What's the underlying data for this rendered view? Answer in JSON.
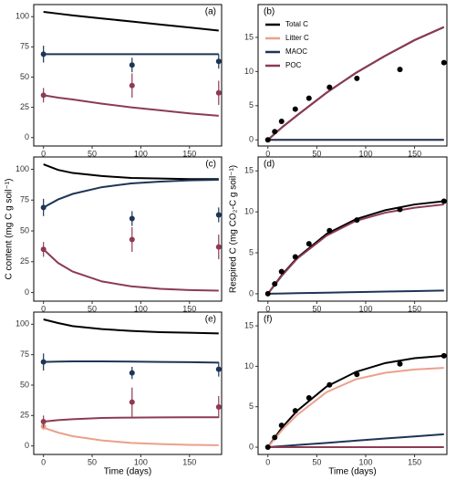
{
  "chart_data": [
    {
      "type": "line",
      "tag": "(a)",
      "xlim": [
        -10,
        183
      ],
      "xticks": [
        0,
        50,
        100,
        150
      ],
      "ylim": [
        -7,
        110
      ],
      "yticks": [
        0,
        25,
        50,
        75,
        100
      ],
      "x": [
        0,
        15,
        30,
        60,
        90,
        120,
        150,
        180
      ],
      "series": [
        {
          "color": "#000000",
          "values": [
            104,
            102.5,
            101,
            98.5,
            96,
            93.5,
            91,
            88.5
          ]
        },
        {
          "color": "#1d3557",
          "values": [
            69,
            69,
            69,
            69,
            69,
            69,
            69,
            69
          ]
        },
        {
          "color": "#8c3b52",
          "values": [
            35,
            33,
            31.5,
            28,
            25,
            22.5,
            20,
            18
          ]
        }
      ],
      "observations": [
        {
          "color": "#1d3557",
          "x": [
            0,
            91,
            180
          ],
          "values": [
            69,
            60,
            63
          ],
          "errors": [
            7,
            6,
            6
          ]
        },
        {
          "color": "#8c3b52",
          "x": [
            0,
            91,
            180
          ],
          "values": [
            35,
            43,
            37
          ],
          "errors": [
            6,
            10,
            10
          ]
        }
      ]
    },
    {
      "type": "line",
      "tag": "(b)",
      "legend": "upper left",
      "xlim": [
        -10,
        183
      ],
      "xticks": [
        0,
        50,
        100,
        150
      ],
      "ylim": [
        -0.9,
        19.8
      ],
      "yticks": [
        0,
        5,
        10,
        15
      ],
      "x": [
        0,
        15,
        30,
        60,
        90,
        120,
        150,
        180
      ],
      "series": [
        {
          "name": "Total C",
          "color": "#000000",
          "values": [
            0,
            1.9,
            3.6,
            6.9,
            9.8,
            12.3,
            14.6,
            16.5
          ]
        },
        {
          "name": "Litter C",
          "color": "#eba08c",
          "values": [
            0,
            0,
            0,
            0,
            0,
            0,
            0,
            0
          ]
        },
        {
          "name": "MAOC",
          "color": "#1d3557",
          "values": [
            0,
            0,
            0,
            0,
            0,
            0,
            0,
            0
          ]
        },
        {
          "name": "POC",
          "color": "#8c3b52",
          "values": [
            0,
            1.9,
            3.6,
            6.9,
            9.8,
            12.3,
            14.6,
            16.5
          ]
        }
      ],
      "observations": [
        {
          "color": "#000000",
          "x": [
            0,
            7,
            14,
            28,
            42,
            63,
            91,
            135,
            180
          ],
          "values": [
            0,
            1.2,
            2.7,
            4.5,
            6.1,
            7.7,
            9,
            10.3,
            11.3
          ]
        }
      ]
    },
    {
      "type": "line",
      "tag": "(c)",
      "ylabel": "C content (mg C g soil⁻¹)",
      "xlim": [
        -10,
        183
      ],
      "xticks": [
        0,
        50,
        100,
        150
      ],
      "ylim": [
        -7,
        110
      ],
      "yticks": [
        0,
        25,
        50,
        75,
        100
      ],
      "x": [
        0,
        15,
        30,
        60,
        90,
        120,
        150,
        180
      ],
      "series": [
        {
          "color": "#000000",
          "values": [
            104,
            99.5,
            97,
            94.5,
            93,
            92.5,
            92,
            92
          ]
        },
        {
          "color": "#1d3557",
          "values": [
            69,
            75.5,
            80,
            85.5,
            88.5,
            90,
            91,
            91.5
          ]
        },
        {
          "color": "#8c3b52",
          "values": [
            35,
            24,
            17,
            9,
            5,
            3,
            2,
            1.5
          ]
        }
      ],
      "observations": [
        {
          "color": "#1d3557",
          "x": [
            0,
            91,
            180
          ],
          "values": [
            69,
            60,
            63
          ],
          "errors": [
            7,
            6,
            6
          ]
        },
        {
          "color": "#8c3b52",
          "x": [
            0,
            91,
            180
          ],
          "values": [
            35,
            43,
            37
          ],
          "errors": [
            6,
            10,
            10
          ]
        }
      ]
    },
    {
      "type": "line",
      "tag": "(d)",
      "ylabel": "Respired C (mg CO₂-C g soil⁻¹)",
      "xlim": [
        -10,
        183
      ],
      "xticks": [
        0,
        50,
        100,
        150
      ],
      "ylim": [
        -0.9,
        16.7
      ],
      "yticks": [
        0,
        5,
        10,
        15
      ],
      "x": [
        0,
        15,
        30,
        60,
        90,
        120,
        150,
        180
      ],
      "series": [
        {
          "color": "#000000",
          "values": [
            0,
            2.4,
            4.4,
            7.3,
            9.1,
            10.2,
            10.9,
            11.3
          ]
        },
        {
          "color": "#1d3557",
          "values": [
            0,
            0.03,
            0.07,
            0.13,
            0.2,
            0.27,
            0.33,
            0.4
          ]
        },
        {
          "color": "#8c3b52",
          "values": [
            0,
            2.3,
            4.3,
            7.1,
            8.9,
            9.9,
            10.5,
            10.9
          ]
        }
      ],
      "observations": [
        {
          "color": "#000000",
          "x": [
            0,
            7,
            14,
            28,
            42,
            63,
            91,
            135,
            180
          ],
          "values": [
            0,
            1.2,
            2.7,
            4.5,
            6.1,
            7.7,
            9,
            10.3,
            11.3
          ]
        }
      ]
    },
    {
      "type": "line",
      "tag": "(e)",
      "xlabel": "Time (days)",
      "xlim": [
        -10,
        183
      ],
      "xticks": [
        0,
        50,
        100,
        150
      ],
      "ylim": [
        -7,
        110
      ],
      "yticks": [
        0,
        25,
        50,
        75,
        100
      ],
      "x": [
        0,
        15,
        30,
        60,
        90,
        120,
        150,
        180
      ],
      "series": [
        {
          "color": "#000000",
          "values": [
            104,
            101,
            98.5,
            96,
            94.5,
            93.5,
            93,
            92.5
          ]
        },
        {
          "color": "#1d3557",
          "values": [
            69,
            69.3,
            69.5,
            69.5,
            69.3,
            69,
            68.8,
            68.5
          ]
        },
        {
          "color": "#eba08c",
          "values": [
            15,
            11,
            8,
            4.5,
            2.5,
            1.5,
            0.9,
            0.6
          ]
        },
        {
          "color": "#8c3b52",
          "values": [
            20,
            21.2,
            22,
            23,
            23.3,
            23.5,
            23.6,
            23.6
          ]
        }
      ],
      "observations": [
        {
          "color": "#1d3557",
          "x": [
            0,
            91,
            180
          ],
          "values": [
            69,
            60,
            63
          ],
          "errors": [
            7,
            5,
            6
          ]
        },
        {
          "color": "#eba08c",
          "x": [
            0
          ],
          "values": [
            16
          ],
          "errors": [
            3
          ]
        },
        {
          "color": "#8c3b52",
          "x": [
            0,
            91,
            180
          ],
          "values": [
            20,
            36,
            32
          ],
          "errors": [
            5,
            12,
            9
          ]
        }
      ]
    },
    {
      "type": "line",
      "tag": "(f)",
      "xlabel": "Time (days)",
      "xlim": [
        -10,
        183
      ],
      "xticks": [
        0,
        50,
        100,
        150
      ],
      "ylim": [
        -0.9,
        16.7
      ],
      "yticks": [
        0,
        5,
        10,
        15
      ],
      "x": [
        0,
        15,
        30,
        60,
        90,
        120,
        150,
        180
      ],
      "series": [
        {
          "color": "#000000",
          "values": [
            0,
            2.5,
            4.5,
            7.5,
            9.3,
            10.4,
            11,
            11.3
          ]
        },
        {
          "color": "#eba08c",
          "values": [
            0,
            2.2,
            4,
            6.8,
            8.4,
            9.2,
            9.6,
            9.8
          ]
        },
        {
          "color": "#1d3557",
          "values": [
            0,
            0.13,
            0.27,
            0.53,
            0.8,
            1.07,
            1.33,
            1.6
          ]
        },
        {
          "color": "#8c3b52",
          "values": [
            0,
            0,
            0,
            0,
            0,
            0,
            0,
            0
          ]
        }
      ],
      "observations": [
        {
          "color": "#000000",
          "x": [
            0,
            7,
            14,
            28,
            42,
            63,
            91,
            135,
            180
          ],
          "values": [
            0,
            1.2,
            2.7,
            4.5,
            6.1,
            7.7,
            9,
            10.3,
            11.3
          ]
        }
      ]
    }
  ]
}
